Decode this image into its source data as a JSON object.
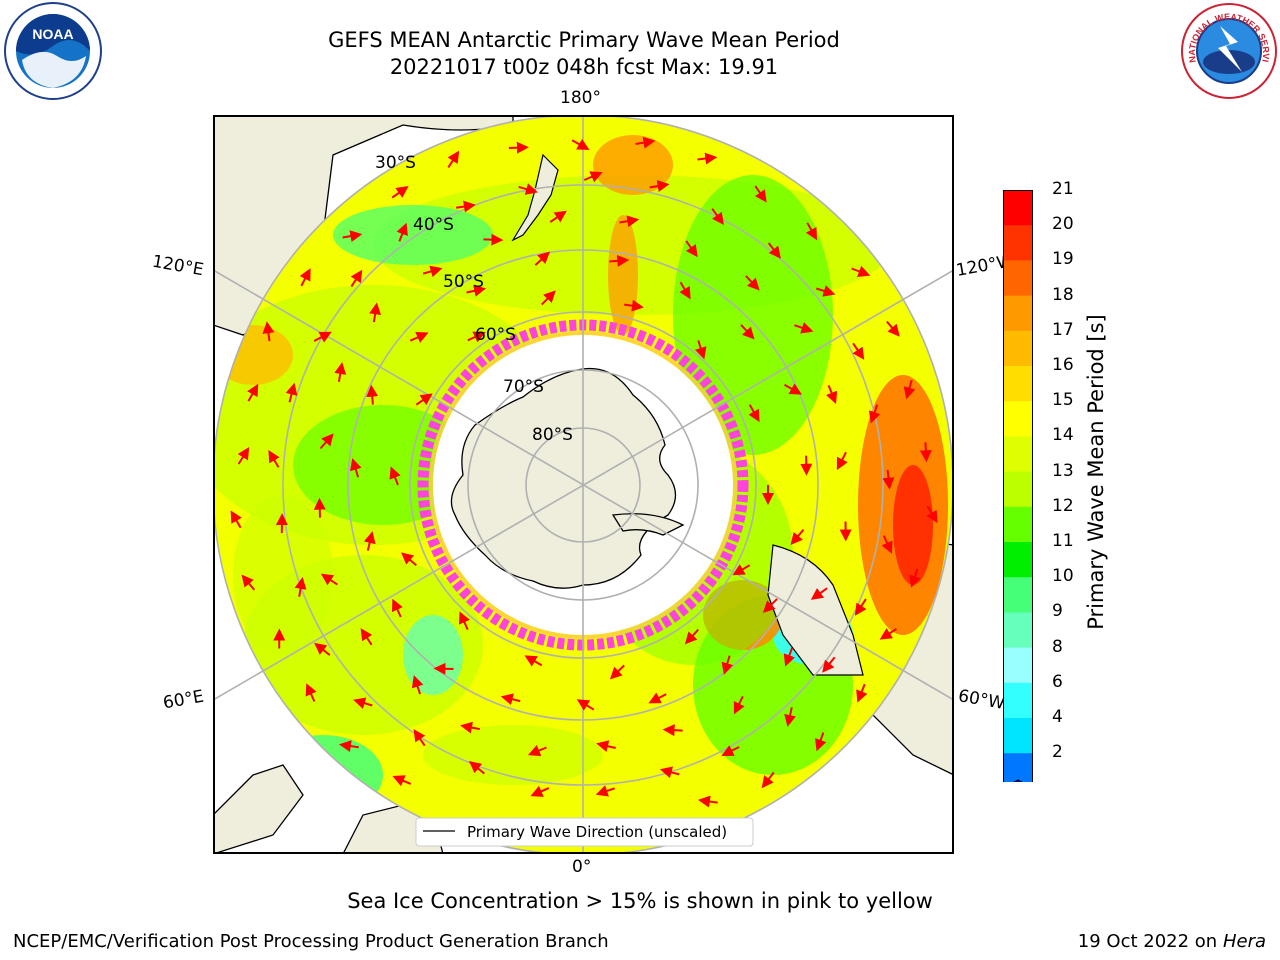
{
  "title": {
    "line1": "GEFS MEAN Antarctic Primary Wave Mean Period",
    "line2": "20221017 t00z 048h fcst   Max: 19.91"
  },
  "logos": {
    "left": {
      "icon": "noaa-logo",
      "text": "NOAA"
    },
    "right": {
      "icon": "national-weather-service-logo",
      "text": "NATIONAL WEATHER SERVICE"
    }
  },
  "map": {
    "projection": "south-polar-stereographic",
    "longitude_labels": {
      "top": "180°",
      "bottom": "0°",
      "left_upper": "120°E",
      "left_lower": "60°E",
      "right_upper": "120°W",
      "right_lower": "60°W"
    },
    "latitude_labels": [
      "30°S",
      "40°S",
      "50°S",
      "60°S",
      "70°S",
      "80°S"
    ],
    "legend": "Primary Wave Direction (unscaled)",
    "vector_color": "#ff0000",
    "sea_ice_color": "#ff44dd",
    "land_color": "#efeddc"
  },
  "colorbar": {
    "label": "Primary Wave Mean Period [s]",
    "ticks": [
      "21",
      "20",
      "19",
      "18",
      "17",
      "16",
      "15",
      "14",
      "13",
      "12",
      "11",
      "10",
      "9",
      "8",
      "6",
      "4",
      "2"
    ],
    "colors": [
      "#ff0000",
      "#ff3300",
      "#ff6600",
      "#ff9900",
      "#ffbb00",
      "#ffdd00",
      "#ffff00",
      "#ddff00",
      "#bbff00",
      "#66ff00",
      "#00ee00",
      "#44ff77",
      "#66ffbb",
      "#99ffff",
      "#33ffff",
      "#00e5ff",
      "#0077ff"
    ],
    "extend_color": "#0000ff"
  },
  "footer": {
    "note": "Sea Ice Concentration > 15% is shown in pink to yellow",
    "left": "NCEP/EMC/Verification Post Processing Product Generation Branch",
    "right_prefix": "19 Oct 2022 on ",
    "right_host": "Hera"
  }
}
